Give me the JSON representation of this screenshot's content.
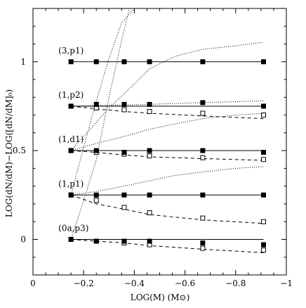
{
  "chart_data": {
    "type": "scatter",
    "title": "",
    "xlabel": "LOG(M) (M⊙)",
    "ylabel": "LOG(dN/dM)−LOG([dN/dM]₀)",
    "xlim": [
      0,
      -1
    ],
    "ylim": [
      -0.2,
      1.3
    ],
    "x_ticks": [
      0,
      -0.2,
      -0.4,
      -0.6,
      -0.8,
      -1
    ],
    "x_tick_labels": [
      "0",
      "−0.2",
      "−0.4",
      "−0.6",
      "−0.8",
      "−1"
    ],
    "y_ticks": [
      0,
      0.5,
      1
    ],
    "y_tick_labels": [
      "0",
      "0.5",
      "1"
    ],
    "grid": false,
    "panels": [
      {
        "label": "(3,p1)",
        "offset": 1.0,
        "x": [
          -0.15,
          -0.25,
          -0.36,
          -0.46,
          -0.67,
          -0.91
        ],
        "filled": [
          1.0,
          1.0,
          1.0,
          1.0,
          1.0,
          1.0
        ],
        "open": [],
        "solid_line": [
          [
            -0.15,
            1.0
          ],
          [
            -0.91,
            1.0
          ]
        ],
        "dashed_line": [],
        "dotted_lines": [
          [
            [
              -0.15,
              0.0
            ],
            [
              -0.2,
              0.22
            ],
            [
              -0.25,
              0.45
            ],
            [
              -0.3,
              0.8
            ],
            [
              -0.35,
              1.12
            ],
            [
              -0.38,
              1.3
            ]
          ],
          [
            [
              -0.15,
              0.25
            ],
            [
              -0.2,
              0.52
            ],
            [
              -0.25,
              0.78
            ],
            [
              -0.3,
              1.02
            ],
            [
              -0.35,
              1.22
            ],
            [
              -0.4,
              1.3
            ]
          ],
          [
            [
              -0.15,
              0.5
            ],
            [
              -0.2,
              0.58
            ],
            [
              -0.25,
              0.66
            ],
            [
              -0.3,
              0.74
            ],
            [
              -0.36,
              0.82
            ],
            [
              -0.46,
              0.96
            ],
            [
              -0.56,
              1.03
            ],
            [
              -0.67,
              1.07
            ],
            [
              -0.8,
              1.09
            ],
            [
              -0.91,
              1.11
            ]
          ]
        ]
      },
      {
        "label": "(1,p2)",
        "offset": 0.75,
        "x": [
          -0.15,
          -0.25,
          -0.36,
          -0.46,
          -0.67,
          -0.91
        ],
        "filled": [
          0.75,
          0.76,
          0.76,
          0.76,
          0.77,
          0.75
        ],
        "open": [
          0.75,
          0.74,
          0.73,
          0.72,
          0.71,
          0.7
        ],
        "solid_line": [
          [
            -0.15,
            0.75
          ],
          [
            -0.91,
            0.75
          ]
        ],
        "dashed_line": [
          [
            -0.15,
            0.75
          ],
          [
            -0.25,
            0.735
          ],
          [
            -0.36,
            0.72
          ],
          [
            -0.46,
            0.71
          ],
          [
            -0.67,
            0.695
          ],
          [
            -0.91,
            0.68
          ]
        ],
        "dotted_lines": [
          [
            [
              -0.15,
              0.75
            ],
            [
              -0.46,
              0.76
            ],
            [
              -0.67,
              0.77
            ],
            [
              -0.91,
              0.78
            ]
          ]
        ]
      },
      {
        "label": "(1,d1)",
        "offset": 0.5,
        "x": [
          -0.15,
          -0.25,
          -0.36,
          -0.46,
          -0.67,
          -0.91
        ],
        "filled": [
          0.5,
          0.5,
          0.49,
          0.5,
          0.5,
          0.49
        ],
        "open": [
          0.5,
          0.49,
          0.48,
          0.47,
          0.46,
          0.45
        ],
        "solid_line": [
          [
            -0.15,
            0.5
          ],
          [
            -0.91,
            0.5
          ]
        ],
        "dashed_line": [
          [
            -0.15,
            0.5
          ],
          [
            -0.25,
            0.49
          ],
          [
            -0.36,
            0.475
          ],
          [
            -0.46,
            0.465
          ],
          [
            -0.67,
            0.455
          ],
          [
            -0.91,
            0.445
          ]
        ],
        "dotted_lines": [
          [
            [
              -0.15,
              0.5
            ],
            [
              -0.25,
              0.54
            ],
            [
              -0.36,
              0.58
            ],
            [
              -0.46,
              0.62
            ],
            [
              -0.56,
              0.65
            ],
            [
              -0.67,
              0.68
            ],
            [
              -0.8,
              0.7
            ],
            [
              -0.91,
              0.71
            ]
          ]
        ]
      },
      {
        "label": "(1,p1)",
        "offset": 0.25,
        "x": [
          -0.15,
          -0.25,
          -0.36,
          -0.46,
          -0.67,
          -0.91
        ],
        "filled": [
          0.25,
          0.25,
          0.25,
          0.25,
          0.25,
          0.25
        ],
        "open": [
          0.25,
          0.22,
          0.18,
          0.15,
          0.12,
          0.1
        ],
        "solid_line": [
          [
            -0.15,
            0.25
          ],
          [
            -0.91,
            0.25
          ]
        ],
        "dashed_line": [
          [
            -0.15,
            0.25
          ],
          [
            -0.25,
            0.2
          ],
          [
            -0.36,
            0.17
          ],
          [
            -0.46,
            0.14
          ],
          [
            -0.67,
            0.11
          ],
          [
            -0.91,
            0.09
          ]
        ],
        "dotted_lines": [
          [
            [
              -0.15,
              0.25
            ],
            [
              -0.25,
              0.27
            ],
            [
              -0.36,
              0.3
            ],
            [
              -0.46,
              0.33
            ],
            [
              -0.56,
              0.36
            ],
            [
              -0.67,
              0.38
            ],
            [
              -0.8,
              0.4
            ],
            [
              -0.91,
              0.41
            ]
          ]
        ]
      },
      {
        "label": "(0a,p3)",
        "offset": 0.0,
        "x": [
          -0.15,
          -0.25,
          -0.36,
          -0.46,
          -0.67,
          -0.91
        ],
        "filled": [
          0.0,
          -0.01,
          -0.01,
          -0.01,
          -0.02,
          -0.03
        ],
        "open": [
          0.0,
          -0.01,
          -0.02,
          -0.03,
          -0.05,
          -0.06
        ],
        "solid_line": [
          [
            -0.15,
            0.0
          ],
          [
            -0.91,
            0.0
          ]
        ],
        "dashed_line": [
          [
            -0.15,
            0.0
          ],
          [
            -0.25,
            -0.01
          ],
          [
            -0.36,
            -0.02
          ],
          [
            -0.46,
            -0.035
          ],
          [
            -0.67,
            -0.055
          ],
          [
            -0.91,
            -0.075
          ]
        ],
        "dotted_lines": []
      }
    ]
  }
}
